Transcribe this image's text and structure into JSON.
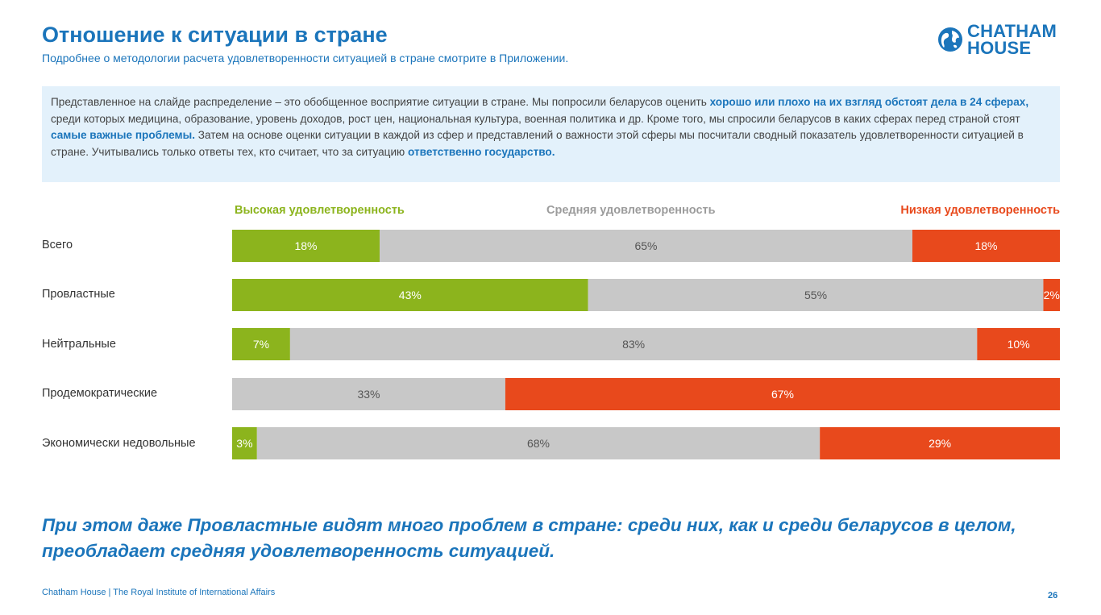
{
  "header": {
    "title": "Отношение к ситуации в стране",
    "subtitle": "Подробнее о методологии расчета удовлетворенности ситуацией в стране смотрите в Приложении."
  },
  "logo": {
    "line1": "CHATHAM",
    "line2": "HOUSE"
  },
  "info": {
    "p1": "Представленное на слайде распределение – это обобщенное восприятие ситуации в стране. Мы попросили беларусов оценить ",
    "b1": "хорошо или плохо на их взгляд обстоят дела в 24 сферах,",
    "p2": " среди которых медицина, образование, уровень доходов, рост цен, национальная культура, военная политика и др. Кроме того, мы спросили беларусов в каких сферах перед страной стоят ",
    "b2": "самые важные проблемы.",
    "p3": " Затем на основе оценки ситуации в каждой из сфер и представлений о важности этой сферы мы посчитали сводный показатель удовлетворенности ситуацией в стране. Учитывались только ответы тех, кто считает, что за ситуацию ",
    "b3": "ответственно государство."
  },
  "colors": {
    "high": "#8cb41d",
    "mid": "#c8c8c8",
    "low": "#e8491c"
  },
  "chart_data": {
    "type": "bar",
    "orientation": "horizontal",
    "stacked": true,
    "normalized": true,
    "xlim": [
      0,
      100
    ],
    "categories": [
      "Всего",
      "Провластные",
      "Нейтральные",
      "Продемократические",
      "Экономически недовольные"
    ],
    "series": [
      {
        "name": "Высокая удовлетворенность",
        "values": [
          18,
          43,
          7,
          0,
          3
        ],
        "labels": [
          "18%",
          "43%",
          "7%",
          "",
          "3%"
        ]
      },
      {
        "name": "Средняя удовлетворенность",
        "values": [
          65,
          55,
          83,
          33,
          68
        ],
        "labels": [
          "65%",
          "55%",
          "83%",
          "33%",
          "68%"
        ]
      },
      {
        "name": "Низкая удовлетворенность",
        "values": [
          18,
          2,
          10,
          67,
          29
        ],
        "labels": [
          "18%",
          "2%",
          "10%",
          "67%",
          "29%"
        ]
      }
    ]
  },
  "conclusion": "При этом даже Провластные видят много проблем в стране: среди них, как и среди беларусов в целом, преобладает средняя удовлетворенность ситуацией.",
  "footer": {
    "text": "Chatham House  |  The Royal Institute of International Affairs",
    "page": "26"
  }
}
